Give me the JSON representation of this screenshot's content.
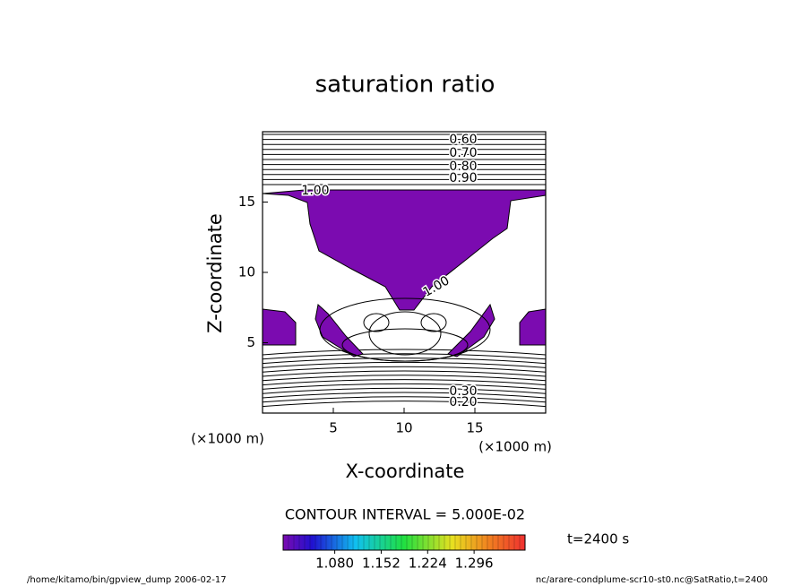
{
  "chart_data": {
    "type": "contour",
    "title": "saturation ratio",
    "x_label": "X-coordinate",
    "y_label": "Z-coordinate",
    "x_unit": "(×1000 m)",
    "y_unit": "(×1000 m)",
    "xlim": [
      0,
      20
    ],
    "xticks": [
      5,
      10,
      15
    ],
    "ylim": [
      0,
      20
    ],
    "yticks": [
      5,
      10,
      15
    ],
    "fill_color": "#7b0bb0",
    "contour_labels": [
      "0.60",
      "0.70",
      "0.80",
      "0.90",
      "1.00",
      "1.00",
      "0.30",
      "0.20"
    ],
    "contour_interval": "CONTOUR INTERVAL = 5.000E-02",
    "colorbar": {
      "clim": [
        1.0,
        1.375
      ],
      "ticks": [
        {
          "value": 1.08,
          "label": "1.080"
        },
        {
          "value": 1.152,
          "label": "1.152"
        },
        {
          "value": 1.224,
          "label": "1.224"
        },
        {
          "value": 1.296,
          "label": "1.296"
        }
      ]
    },
    "time_label": "t=2400 s",
    "footer_left": "/home/kitamo/bin/gpview_dump  2006-02-17",
    "footer_right": "nc/arare-condplume-scr10-st0.nc@SatRatio,t=2400"
  }
}
